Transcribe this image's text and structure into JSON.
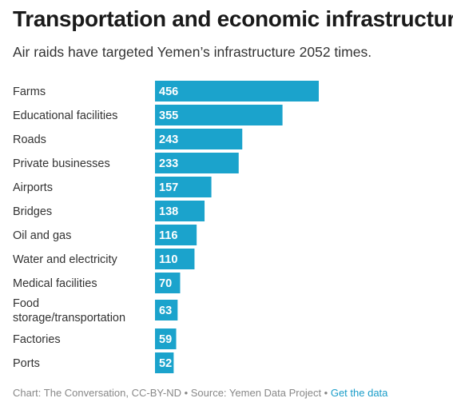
{
  "title": "Transportation and economic infrastructure",
  "subtitle": "Air raids have targeted Yemen’s infrastructure 2052 times.",
  "colors": {
    "bar": "#1ba3cc",
    "link": "#1a9dc9"
  },
  "chart_data": {
    "type": "bar",
    "orientation": "horizontal",
    "categories": [
      "Farms",
      "Educational facilities",
      "Roads",
      "Private businesses",
      "Airports",
      "Bridges",
      "Oil and gas",
      "Water and electricity",
      "Medical facilities",
      "Food storage/transportation",
      "Factories",
      "Ports"
    ],
    "label_lines": [
      [
        "Farms"
      ],
      [
        "Educational facilities"
      ],
      [
        "Roads"
      ],
      [
        "Private businesses"
      ],
      [
        "Airports"
      ],
      [
        "Bridges"
      ],
      [
        "Oil and gas"
      ],
      [
        "Water and electricity"
      ],
      [
        "Medical facilities"
      ],
      [
        "Food",
        "storage/transportation"
      ],
      [
        "Factories"
      ],
      [
        "Ports"
      ]
    ],
    "values": [
      456,
      355,
      243,
      233,
      157,
      138,
      116,
      110,
      70,
      63,
      59,
      52
    ],
    "xlim": [
      0,
      456
    ],
    "grid": false,
    "legend": "none"
  },
  "footer": {
    "source_text": "Chart: The Conversation, CC-BY-ND • Source: Yemen Data Project • ",
    "link_label": "Get the data"
  }
}
